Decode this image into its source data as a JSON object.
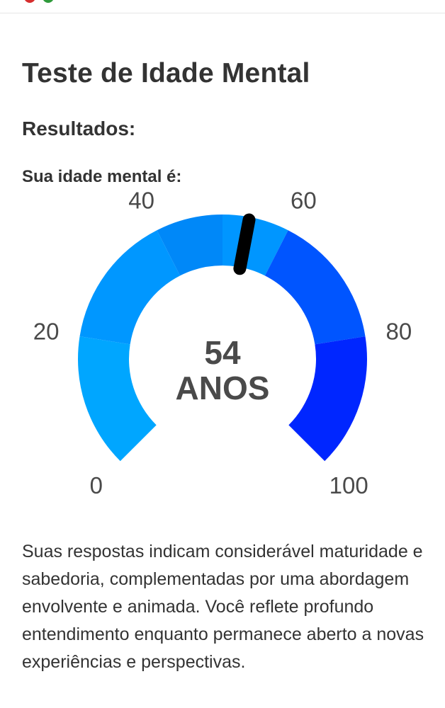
{
  "page": {
    "title": "Teste de Idade Mental",
    "results_heading": "Resultados:",
    "subtitle": "Sua idade mental é:",
    "description": "Suas respostas indicam considerável maturidade e sabedoria, complementadas por uma abordagem envolvente e animada. Você reflete profundo entendimento enquanto permanece aberto a novas experiências e perspectivas."
  },
  "gauge": {
    "value": 54,
    "value_text": "54",
    "unit_text": "ANOS",
    "min": 0,
    "max": 100,
    "tick_labels": [
      "0",
      "20",
      "40",
      "60",
      "80",
      "100"
    ],
    "segments": [
      {
        "from": 0,
        "to": 20,
        "color": "#00a6ff"
      },
      {
        "from": 20,
        "to": 40,
        "color": "#0097ff"
      },
      {
        "from": 40,
        "to": 50,
        "color": "#0088f8"
      },
      {
        "from": 50,
        "to": 60,
        "color": "#0096ff"
      },
      {
        "from": 60,
        "to": 80,
        "color": "#0055ff"
      },
      {
        "from": 80,
        "to": 100,
        "color": "#0026ff"
      }
    ],
    "needle_color": "#000000"
  },
  "colors": {
    "text": "#333333",
    "divider": "#e6e6e6"
  }
}
